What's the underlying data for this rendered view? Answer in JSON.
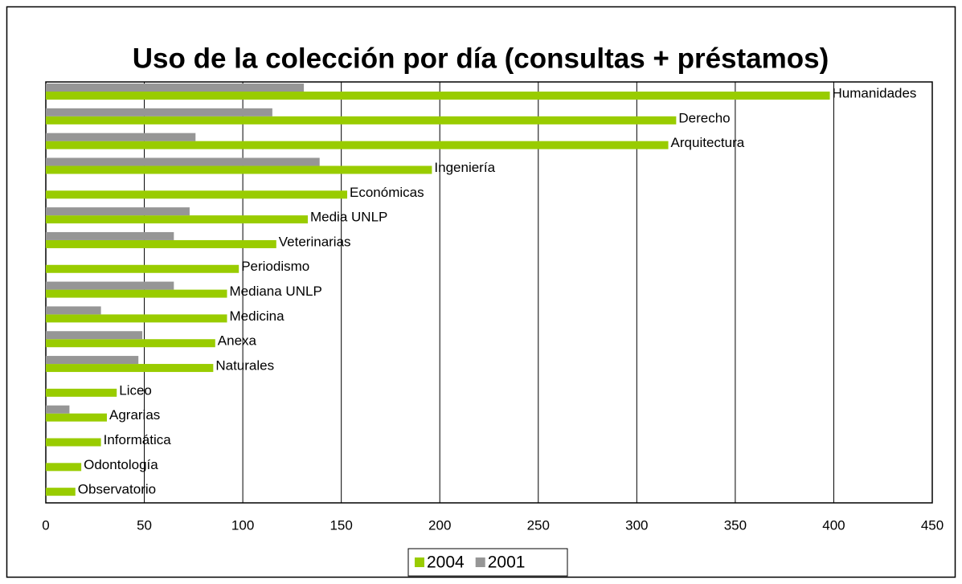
{
  "chart_data": {
    "type": "barh",
    "title": "Uso de la colección por día (consultas + préstamos)",
    "categories": [
      "Humanidades",
      "Derecho",
      "Arquitectura",
      "Ingeniería",
      "Económicas",
      "Media UNLP",
      "Veterinarias",
      "Periodismo",
      "Mediana UNLP",
      "Medicina",
      "Anexa",
      "Naturales",
      "Liceo",
      "Agrarias",
      "Informática",
      "Odontología",
      "Observatorio"
    ],
    "series": [
      {
        "name": "2004",
        "color": "#99cc00",
        "values": [
          398,
          320,
          316,
          196,
          153,
          133,
          117,
          98,
          92,
          92,
          86,
          85,
          36,
          31,
          28,
          18,
          15
        ]
      },
      {
        "name": "2001",
        "color": "#969696",
        "values": [
          131,
          115,
          76,
          139,
          null,
          73,
          65,
          null,
          65,
          28,
          49,
          47,
          null,
          12,
          null,
          null,
          null
        ]
      }
    ],
    "xlim": [
      0,
      450
    ],
    "xticks": [
      0,
      50,
      100,
      150,
      200,
      250,
      300,
      350,
      400,
      450
    ],
    "grid": true,
    "legend": "bottom"
  }
}
